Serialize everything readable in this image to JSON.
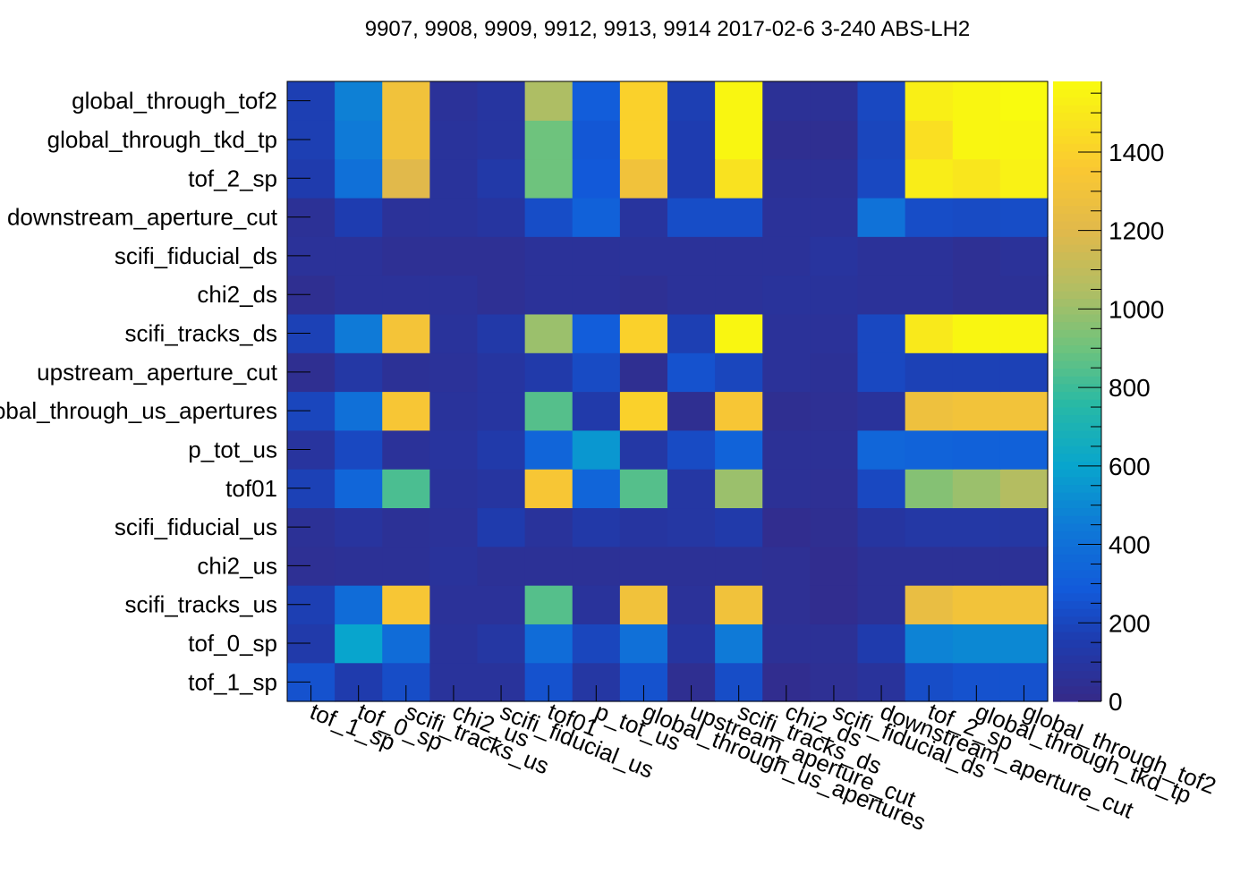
{
  "chart_data": {
    "type": "heatmap",
    "title": "9907, 9908, 9909, 9912, 9913, 9914 2017-02-6 3-240 ABS-LH2",
    "xlabel": "",
    "ylabel": "",
    "colorbar": {
      "range": [
        0,
        1580
      ],
      "ticks": [
        0,
        200,
        400,
        600,
        800,
        1000,
        1200,
        1400
      ],
      "colormap": "parula"
    },
    "x_categories": [
      "tof_1_sp",
      "tof_0_sp",
      "scifi_tracks_us",
      "chi2_us",
      "scifi_fiducial_us",
      "tof01",
      "p_tot_us",
      "global_through_us_apertures",
      "upstream_aperture_cut",
      "scifi_tracks_ds",
      "chi2_ds",
      "scifi_fiducial_ds",
      "downstream_aperture_cut",
      "tof_2_sp",
      "global_through_tkd_tp",
      "global_through_tof2"
    ],
    "y_categories": [
      "tof_1_sp",
      "tof_0_sp",
      "scifi_tracks_us",
      "chi2_us",
      "scifi_fiducial_us",
      "tof01",
      "p_tot_us",
      "global_through_us_apertures",
      "upstream_aperture_cut",
      "scifi_tracks_ds",
      "chi2_ds",
      "scifi_fiducial_ds",
      "downstream_aperture_cut",
      "tof_2_sp",
      "global_through_tkd_tp",
      "global_through_tof2"
    ],
    "z_rows_bottom_to_top": [
      [
        250,
        150,
        230,
        80,
        80,
        250,
        110,
        250,
        40,
        230,
        30,
        50,
        80,
        230,
        250,
        250
      ],
      [
        140,
        600,
        380,
        80,
        110,
        380,
        200,
        400,
        100,
        450,
        60,
        60,
        150,
        480,
        500,
        500
      ],
      [
        170,
        380,
        1340,
        70,
        70,
        850,
        80,
        1300,
        70,
        1300,
        50,
        30,
        60,
        1250,
        1310,
        1310
      ],
      [
        50,
        60,
        60,
        80,
        60,
        60,
        60,
        60,
        60,
        60,
        50,
        30,
        60,
        60,
        60,
        60
      ],
      [
        60,
        90,
        60,
        70,
        150,
        80,
        130,
        100,
        110,
        140,
        30,
        40,
        100,
        120,
        120,
        110
      ],
      [
        180,
        350,
        830,
        80,
        100,
        1340,
        340,
        850,
        110,
        1000,
        60,
        50,
        210,
        950,
        1000,
        1060
      ],
      [
        90,
        210,
        70,
        90,
        140,
        340,
        550,
        120,
        220,
        330,
        60,
        60,
        350,
        330,
        320,
        320
      ],
      [
        200,
        400,
        1340,
        80,
        100,
        850,
        140,
        1400,
        40,
        1340,
        40,
        50,
        80,
        1280,
        1310,
        1310
      ],
      [
        40,
        120,
        60,
        70,
        100,
        140,
        220,
        40,
        250,
        200,
        70,
        60,
        210,
        180,
        180,
        180
      ],
      [
        180,
        450,
        1320,
        80,
        130,
        1000,
        300,
        1400,
        170,
        1560,
        70,
        70,
        210,
        1500,
        1560,
        1560
      ],
      [
        40,
        70,
        70,
        70,
        50,
        70,
        70,
        50,
        70,
        70,
        80,
        80,
        70,
        70,
        50,
        60
      ],
      [
        70,
        70,
        50,
        50,
        50,
        70,
        70,
        70,
        70,
        70,
        70,
        90,
        70,
        70,
        50,
        70
      ],
      [
        60,
        160,
        70,
        80,
        100,
        230,
        320,
        90,
        230,
        230,
        70,
        70,
        410,
        230,
        220,
        230
      ],
      [
        150,
        400,
        1200,
        80,
        130,
        900,
        280,
        1300,
        160,
        1470,
        60,
        60,
        210,
        1520,
        1490,
        1540
      ],
      [
        170,
        450,
        1300,
        80,
        100,
        900,
        270,
        1400,
        160,
        1560,
        40,
        40,
        200,
        1460,
        1560,
        1560
      ],
      [
        170,
        470,
        1300,
        70,
        100,
        1040,
        300,
        1400,
        170,
        1560,
        60,
        60,
        210,
        1530,
        1560,
        1580
      ]
    ]
  }
}
